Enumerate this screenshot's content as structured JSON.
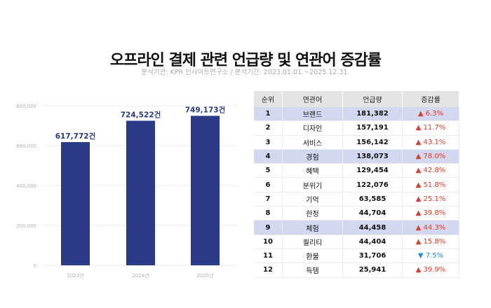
{
  "title": "오프라인 결제 관련 언급량 및 연관어 증감률",
  "subtitle": "분석기관: KPR 인사이트연구소 / 분석기간: 2023.01.01.~2025.12.31.",
  "colors": {
    "bar": "#2b3a86",
    "up": "#e03a2a",
    "down": "#2e8fcf",
    "highlight": "#d3d8f0"
  },
  "chart_data": {
    "type": "bar",
    "categories": [
      "2023년",
      "2024년",
      "2025년"
    ],
    "values": [
      617772,
      724522,
      749173
    ],
    "data_labels": [
      "617,772건",
      "724,522건",
      "749,173건"
    ],
    "ylim": [
      0,
      800000
    ],
    "yticks": [
      "0",
      "200,000",
      "400,000",
      "600,000",
      "800,000"
    ],
    "grid": true
  },
  "table": {
    "headers": [
      "순위",
      "연관어",
      "언급량",
      "증감률"
    ],
    "rows": [
      {
        "rank": "1",
        "word": "브랜드",
        "count": "181,382",
        "dir": "up",
        "change": "▲ 6.3%",
        "highlight": true
      },
      {
        "rank": "2",
        "word": "디자인",
        "count": "157,191",
        "dir": "up",
        "change": "▲ 11.7%",
        "highlight": false
      },
      {
        "rank": "3",
        "word": "서비스",
        "count": "156,142",
        "dir": "up",
        "change": "▲ 43.1%",
        "highlight": false
      },
      {
        "rank": "4",
        "word": "경험",
        "count": "138,073",
        "dir": "up",
        "change": "▲ 78.0%",
        "highlight": true
      },
      {
        "rank": "5",
        "word": "혜택",
        "count": "129,454",
        "dir": "up",
        "change": "▲ 42.8%",
        "highlight": false
      },
      {
        "rank": "6",
        "word": "분위기",
        "count": "122,076",
        "dir": "up",
        "change": "▲ 51.8%",
        "highlight": false
      },
      {
        "rank": "7",
        "word": "기억",
        "count": "63,585",
        "dir": "up",
        "change": "▲ 25.1%",
        "highlight": false
      },
      {
        "rank": "8",
        "word": "한정",
        "count": "44,704",
        "dir": "up",
        "change": "▲ 39.8%",
        "highlight": false
      },
      {
        "rank": "9",
        "word": "체험",
        "count": "44,458",
        "dir": "up",
        "change": "▲ 44.3%",
        "highlight": true
      },
      {
        "rank": "10",
        "word": "퀄리티",
        "count": "44,404",
        "dir": "up",
        "change": "▲ 15.8%",
        "highlight": false
      },
      {
        "rank": "11",
        "word": "환불",
        "count": "31,706",
        "dir": "down",
        "change": "▼ 7.5%",
        "highlight": false
      },
      {
        "rank": "12",
        "word": "득템",
        "count": "25,941",
        "dir": "up",
        "change": "▲ 39.9%",
        "highlight": false
      }
    ]
  }
}
